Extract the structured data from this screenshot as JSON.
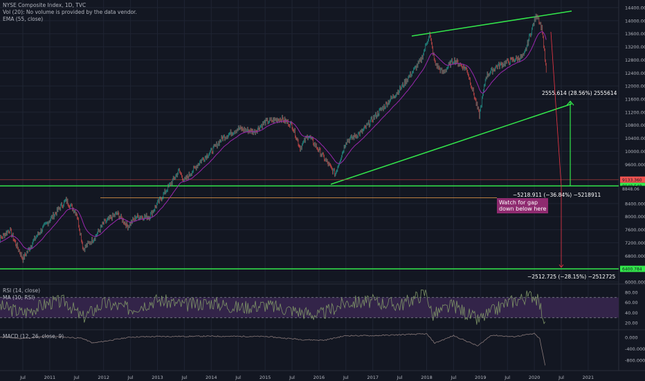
{
  "legend": {
    "symbol": "NYSE Composite Index, 1D, TVC",
    "volume": "Vol (20): No volume is provided by the data vendor.",
    "ema": "EMA (55, close)",
    "rsi": "RSI (14, close)",
    "rsi_ma": "MA (10, RSI)",
    "macd": "MACD (12, 26, close, 9)"
  },
  "colors": {
    "background": "#131722",
    "grid": "#1f2433",
    "candle_up": "#26a69a",
    "candle_down": "#ef5350",
    "ema": "#9c27b0",
    "trendline": "#33e84b",
    "orange_line": "#f2a04a",
    "red_line": "#f23645",
    "rsi_line": "#7e9467",
    "rsi_band": "#332449",
    "note_bg": "#8e2a6f"
  },
  "annotations": {
    "gain_measure": "2555.614 (28.56%) 2555614",
    "drop_measure": "−5218.911 (−36.84%) −5218911",
    "drop_measure_2": "−2512.725 (−28.15%) −2512725",
    "note": "Watch for gap\ndown below here",
    "price_tag_red": "9133.360",
    "price_tag_green": "8940.548",
    "price_tag_small": "8848.06",
    "price_tag_bottom": "6400.784"
  },
  "chart_data": [
    {
      "type": "line",
      "title": "NYSE Composite Index, 1D, TVC",
      "x_ticks": [
        "Jul",
        "2011",
        "Jul",
        "2012",
        "Jul",
        "2013",
        "Jul",
        "2014",
        "Jul",
        "2015",
        "Jul",
        "2016",
        "Jul",
        "2017",
        "Jul",
        "2018",
        "Jul",
        "2019",
        "Jul",
        "2020",
        "Jul",
        "2021"
      ],
      "y_ticks": [
        "14400.000",
        "14000.000",
        "13600.000",
        "13200.000",
        "12800.000",
        "12400.000",
        "12000.000",
        "11600.000",
        "11200.000",
        "10800.000",
        "10400.000",
        "10000.000",
        "9600.000",
        "8400.000",
        "8000.000",
        "7600.000",
        "7200.000",
        "6800.000",
        "6400.000",
        "6000.000"
      ],
      "ylim": [
        6000,
        14400
      ],
      "grid": true,
      "series": [
        {
          "name": "",
          "x": [
            2010.0,
            2010.25,
            2010.5,
            2010.75,
            2011.0,
            2011.3,
            2011.5,
            2011.62,
            2011.85,
            2012.0,
            2012.25,
            2012.45,
            2012.6,
            2012.85,
            2013.0,
            2013.4,
            2013.5,
            2013.8,
            2014.0,
            2014.2,
            2014.5,
            2014.8,
            2015.0,
            2015.3,
            2015.5,
            2015.65,
            2015.8,
            2016.05,
            2016.3,
            2016.5,
            2016.8,
            2017.0,
            2017.5,
            2017.9,
            2018.05,
            2018.15,
            2018.3,
            2018.5,
            2018.75,
            2018.98,
            2019.1,
            2019.3,
            2019.6,
            2019.8,
            2020.0,
            2020.05,
            2020.15,
            2020.2,
            2020.22
          ],
          "y": [
            7200,
            7600,
            6700,
            7400,
            7900,
            8500,
            8100,
            7000,
            7400,
            7800,
            8100,
            7700,
            8000,
            8000,
            8400,
            9400,
            9100,
            9700,
            10000,
            10400,
            10700,
            10600,
            10900,
            11000,
            10800,
            10100,
            10500,
            9900,
            9300,
            10300,
            10600,
            11000,
            11900,
            12800,
            13600,
            12700,
            12400,
            12800,
            12500,
            11100,
            12300,
            12600,
            12800,
            12900,
            14000,
            14200,
            13700,
            12800,
            12450
          ]
        }
      ],
      "horizontal_levels": [
        8940.548,
        9133.36,
        6400.784,
        8848.06
      ]
    },
    {
      "type": "line",
      "title": "RSI (14, close)",
      "y_ticks": [
        "80.00",
        "60.00",
        "40.00",
        "20.00"
      ],
      "ylim": [
        10,
        90
      ],
      "band": [
        30,
        70
      ],
      "series": [
        {
          "name": "RSI (14, close)",
          "x": [
            2010.0,
            2010.5,
            2011.0,
            2011.3,
            2011.6,
            2012.0,
            2012.5,
            2013.0,
            2013.5,
            2014.0,
            2014.5,
            2015.0,
            2015.5,
            2016.0,
            2016.5,
            2017.0,
            2017.5,
            2018.0,
            2018.1,
            2018.5,
            2018.95,
            2019.5,
            2020.0,
            2020.1,
            2020.2
          ],
          "y": [
            55,
            40,
            60,
            62,
            30,
            58,
            48,
            65,
            55,
            60,
            50,
            55,
            45,
            35,
            60,
            62,
            55,
            80,
            35,
            55,
            25,
            60,
            75,
            55,
            22
          ]
        }
      ]
    },
    {
      "type": "line",
      "title": "MACD (12, 26, close, 9)",
      "y_ticks": [
        "0.000",
        "-400.000",
        "-800.000"
      ],
      "ylim": [
        -1000,
        200
      ],
      "series": [
        {
          "name": "MACD (12, 26, close, 9)",
          "x": [
            2010.0,
            2010.5,
            2011.0,
            2011.6,
            2011.8,
            2012.5,
            2013.0,
            2014.0,
            2015.0,
            2015.7,
            2016.1,
            2016.5,
            2017.0,
            2018.0,
            2018.15,
            2018.5,
            2018.95,
            2019.2,
            2019.6,
            2020.0,
            2020.1,
            2020.2
          ],
          "y": [
            20,
            -40,
            40,
            -30,
            -200,
            10,
            30,
            40,
            30,
            -80,
            -100,
            60,
            60,
            120,
            -200,
            60,
            -300,
            80,
            20,
            130,
            -50,
            -980
          ]
        }
      ]
    }
  ]
}
